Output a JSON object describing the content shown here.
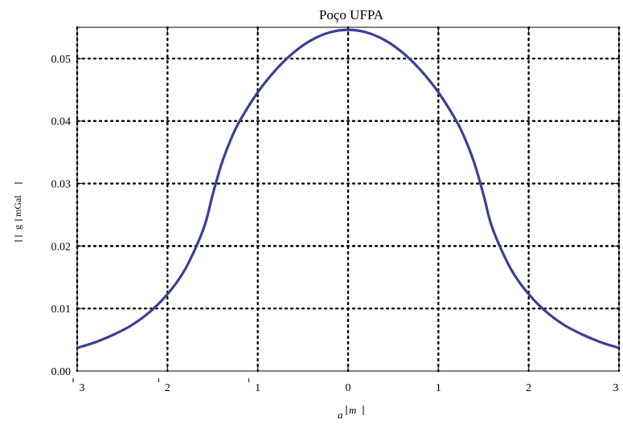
{
  "chart_data": {
    "type": "line",
    "title": "Poço UFPA",
    "xlabel": "a",
    "xunit": "m",
    "ylabel_prefix": "g",
    "ylabel_unit": "mGal",
    "xlim": [
      -3,
      3
    ],
    "ylim": [
      0,
      0.055
    ],
    "grid": true,
    "x_ticks": [
      -3,
      -2,
      -1,
      0,
      1,
      2,
      3
    ],
    "x_tick_labels": [
      "3",
      "2",
      "1",
      "0",
      "1",
      "2",
      "3"
    ],
    "y_ticks": [
      0.0,
      0.01,
      0.02,
      0.03,
      0.04,
      0.05
    ],
    "y_tick_labels": [
      "0.00",
      "0.01",
      "0.02",
      "0.03",
      "0.04",
      "0.05"
    ],
    "series": [
      {
        "color": "#3b3f98",
        "x": [
          -3.0,
          -2.8,
          -2.6,
          -2.4,
          -2.2,
          -2.0,
          -1.8,
          -1.6,
          -1.5,
          -1.4,
          -1.3,
          -1.2,
          -1.0,
          -0.8,
          -0.6,
          -0.4,
          -0.2,
          0.0,
          0.2,
          0.4,
          0.6,
          0.8,
          1.0,
          1.2,
          1.3,
          1.4,
          1.5,
          1.6,
          1.8,
          2.0,
          2.2,
          2.4,
          2.6,
          2.8,
          3.0
        ],
        "y": [
          0.0037,
          0.0046,
          0.0058,
          0.0073,
          0.0094,
          0.0123,
          0.0164,
          0.0228,
          0.0282,
          0.0332,
          0.037,
          0.04,
          0.0446,
          0.0482,
          0.051,
          0.053,
          0.0542,
          0.0546,
          0.0542,
          0.053,
          0.051,
          0.0482,
          0.0446,
          0.04,
          0.037,
          0.0332,
          0.0282,
          0.0228,
          0.0164,
          0.0123,
          0.0094,
          0.0073,
          0.0058,
          0.0046,
          0.0037
        ]
      }
    ]
  }
}
